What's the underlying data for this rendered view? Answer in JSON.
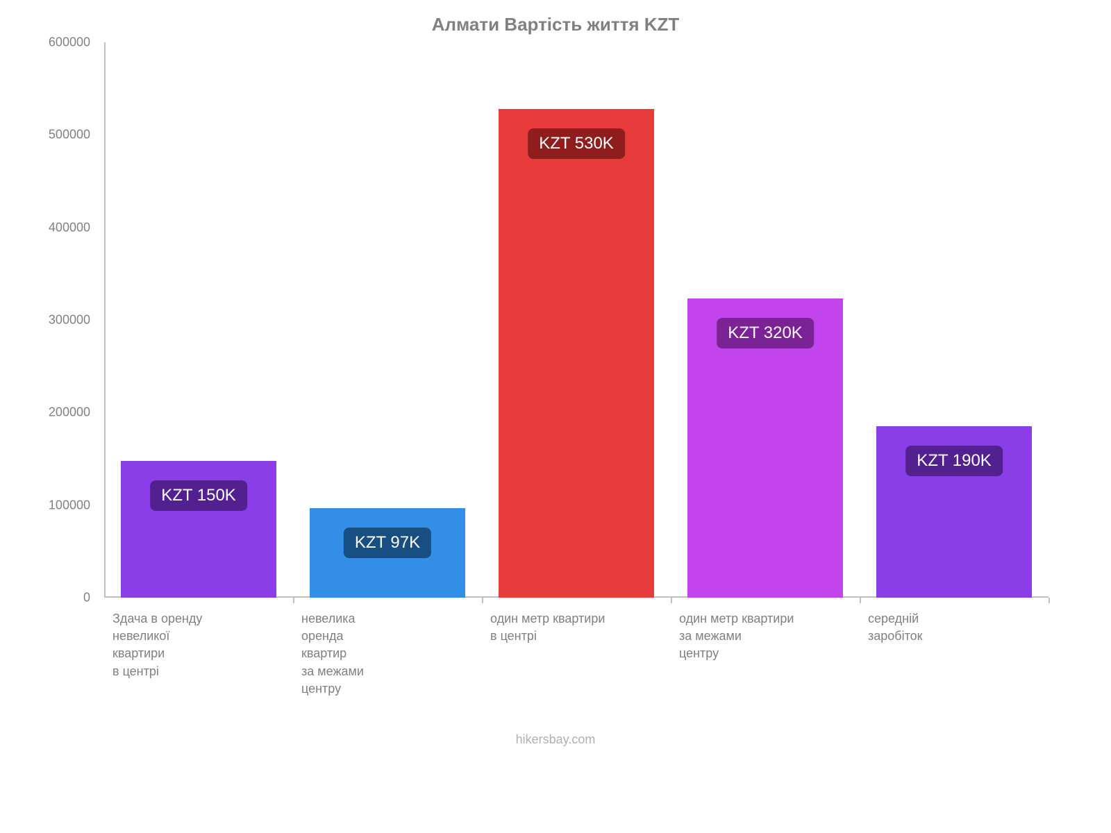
{
  "chart": {
    "type": "bar",
    "title": "Алмати Вартість життя KZT",
    "title_fontsize": 26,
    "title_color": "#808080",
    "background_color": "#ffffff",
    "axis_color": "#c0c0c0",
    "label_color": "#808080",
    "ylim": [
      0,
      600000
    ],
    "ytick_step": 100000,
    "yticks": [
      "0",
      "100000",
      "200000",
      "300000",
      "400000",
      "500000",
      "600000"
    ],
    "ytick_fontsize": 18,
    "bar_width": 0.82,
    "categories": [
      "Здача в оренду\nневеликої\nквартири\nв центрі",
      "невелика\nоренда\nквартир\nза межами\nцентру",
      "один метр квартири\nв центрі",
      "один метр квартири\nза межами\nцентру",
      "середній\nзаробіток"
    ],
    "xlabel_fontsize": 18,
    "values": [
      148000,
      97000,
      528000,
      323000,
      185000
    ],
    "bar_colors": [
      "#8a3ee8",
      "#338ee8",
      "#e83b3b",
      "#c343ec",
      "#8a3ee8"
    ],
    "badges": [
      "KZT 150K",
      "KZT 97K",
      "KZT 530K",
      "KZT 320K",
      "KZT 190K"
    ],
    "badge_colors": [
      "#53218f",
      "#184f82",
      "#8f1d1d",
      "#7a2296",
      "#53218f"
    ],
    "badge_fontsize": 24,
    "badge_text_color": "#ffffff",
    "footer": "hikersbay.com",
    "footer_color": "#b0b0b0",
    "footer_fontsize": 18
  }
}
